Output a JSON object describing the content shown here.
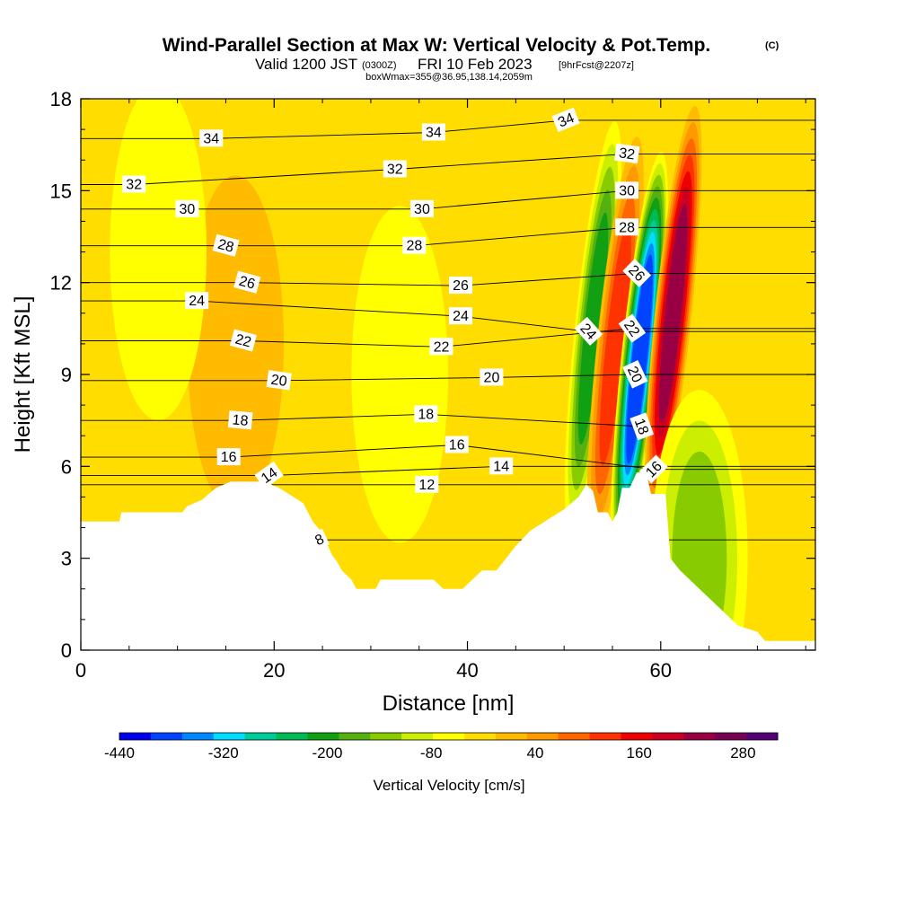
{
  "chart_data": {
    "type": "contour",
    "title": {
      "main": "Wind-Parallel Section at Max W: Vertical Velocity & Pot.Temp.",
      "copyright": "(C)",
      "valid_prefix": "Valid 1200 JST",
      "valid_utc": "(0300Z)",
      "valid_date": "FRI 10 Feb 2023",
      "forecast": "[9hrFcst@2207z]",
      "box": "boxWmax=355@36.95,138.14,2059m"
    },
    "xlabel": "Distance [nm]",
    "ylabel": "Height [Kft MSL]",
    "xlim": [
      0,
      76
    ],
    "ylim": [
      0,
      18
    ],
    "x_ticks": [
      0,
      20,
      40,
      60
    ],
    "y_ticks": [
      0,
      3,
      6,
      9,
      12,
      15,
      18
    ],
    "colorbar": {
      "label": "Vertical Velocity [cm/s]",
      "min": -440,
      "max": 320,
      "step": 40,
      "tick_values": [
        -440,
        -320,
        -200,
        -80,
        40,
        160,
        280
      ],
      "colors": [
        "#0000ee",
        "#0044ff",
        "#0088ff",
        "#00ddff",
        "#00cc99",
        "#00bb55",
        "#11a011",
        "#55b011",
        "#88cc00",
        "#ccee00",
        "#ffff00",
        "#ffdd00",
        "#ffbb00",
        "#ff9900",
        "#ff6600",
        "#ff3300",
        "#ee0000",
        "#cc0022",
        "#990044",
        "#770055",
        "#550077"
      ]
    },
    "background_velocity": 20,
    "velocity_cells": [
      {
        "x": 53,
        "y": 10.5,
        "value": -200
      },
      {
        "x": 55.3,
        "y": 10,
        "value": 180
      },
      {
        "x": 57.8,
        "y": 9.5,
        "value": -380
      },
      {
        "x": 61.3,
        "y": 11,
        "value": 320
      },
      {
        "x": 64,
        "y": 3,
        "value": -110
      },
      {
        "x": 16,
        "y": 10,
        "value": 60
      },
      {
        "x": 33,
        "y": 9,
        "value": -50
      },
      {
        "x": 8,
        "y": 13,
        "value": -30
      },
      {
        "x": 24,
        "y": 8,
        "value": 50
      }
    ],
    "terrain": [
      [
        0,
        4.2
      ],
      [
        4,
        4.2
      ],
      [
        4.2,
        4.5
      ],
      [
        10.5,
        4.5
      ],
      [
        11,
        4.7
      ],
      [
        12.5,
        4.9
      ],
      [
        14,
        5.3
      ],
      [
        15.5,
        5.5
      ],
      [
        19,
        5.5
      ],
      [
        20.5,
        5.3
      ],
      [
        22,
        5.0
      ],
      [
        23,
        4.8
      ],
      [
        23.5,
        4.5
      ],
      [
        24,
        4.2
      ],
      [
        24.8,
        3.9
      ],
      [
        25.3,
        3.6
      ],
      [
        26,
        3.1
      ],
      [
        26.5,
        2.9
      ],
      [
        27,
        2.6
      ],
      [
        28,
        2.3
      ],
      [
        28.5,
        2.0
      ],
      [
        30.5,
        2.0
      ],
      [
        31,
        2.3
      ],
      [
        34,
        2.3
      ],
      [
        35,
        2.3
      ],
      [
        36.5,
        2.3
      ],
      [
        37.5,
        2.0
      ],
      [
        39.5,
        2.0
      ],
      [
        40.5,
        2.3
      ],
      [
        41.5,
        2.6
      ],
      [
        43,
        2.6
      ],
      [
        44,
        3.0
      ],
      [
        45,
        3.4
      ],
      [
        46.5,
        3.9
      ],
      [
        48,
        4.2
      ],
      [
        50,
        4.6
      ],
      [
        51.5,
        5.0
      ],
      [
        52.3,
        5.4
      ],
      [
        53,
        5.2
      ],
      [
        53.5,
        4.5
      ],
      [
        54.5,
        4.5
      ],
      [
        55,
        4.2
      ],
      [
        55.5,
        4.5
      ],
      [
        56,
        5.3
      ],
      [
        56.8,
        5.3
      ],
      [
        57.5,
        5.8
      ],
      [
        58.5,
        5.8
      ],
      [
        59,
        5.1
      ],
      [
        60.5,
        5.1
      ],
      [
        61,
        3.0
      ],
      [
        62,
        2.6
      ],
      [
        63,
        2.3
      ],
      [
        64,
        2.0
      ],
      [
        65,
        1.7
      ],
      [
        66,
        1.4
      ],
      [
        67,
        1.1
      ],
      [
        68,
        0.8
      ],
      [
        70,
        0.6
      ],
      [
        70.8,
        0.3
      ],
      [
        76,
        0.3
      ]
    ],
    "theta_labels": [
      {
        "text": "34",
        "x": 13.5,
        "y": 16.7,
        "rot": 0
      },
      {
        "text": "34",
        "x": 36.5,
        "y": 16.9,
        "rot": 0
      },
      {
        "text": "34",
        "x": 50.2,
        "y": 17.3,
        "rot": -22
      },
      {
        "text": "32",
        "x": 5.5,
        "y": 15.2,
        "rot": 0
      },
      {
        "text": "32",
        "x": 32.5,
        "y": 15.7,
        "rot": 0
      },
      {
        "text": "32",
        "x": 56.5,
        "y": 16.2,
        "rot": 8
      },
      {
        "text": "30",
        "x": 11,
        "y": 14.4,
        "rot": 0
      },
      {
        "text": "30",
        "x": 35.3,
        "y": 14.4,
        "rot": 0
      },
      {
        "text": "30",
        "x": 56.5,
        "y": 15.0,
        "rot": 0
      },
      {
        "text": "28",
        "x": 15,
        "y": 13.2,
        "rot": 15
      },
      {
        "text": "28",
        "x": 34.5,
        "y": 13.2,
        "rot": 0
      },
      {
        "text": "28",
        "x": 56.5,
        "y": 13.8,
        "rot": 0
      },
      {
        "text": "26",
        "x": 17.2,
        "y": 12.0,
        "rot": 15
      },
      {
        "text": "26",
        "x": 39.3,
        "y": 11.9,
        "rot": 0
      },
      {
        "text": "26",
        "x": 57.5,
        "y": 12.3,
        "rot": 45
      },
      {
        "text": "24",
        "x": 12,
        "y": 11.4,
        "rot": 0
      },
      {
        "text": "24",
        "x": 39.3,
        "y": 10.9,
        "rot": 0
      },
      {
        "text": "24",
        "x": 52.5,
        "y": 10.4,
        "rot": 48
      },
      {
        "text": "22",
        "x": 16.8,
        "y": 10.1,
        "rot": 15
      },
      {
        "text": "22",
        "x": 37.3,
        "y": 9.9,
        "rot": 0
      },
      {
        "text": "22",
        "x": 57,
        "y": 10.5,
        "rot": 55
      },
      {
        "text": "20",
        "x": 20.5,
        "y": 8.8,
        "rot": 8
      },
      {
        "text": "20",
        "x": 42.5,
        "y": 8.9,
        "rot": 0
      },
      {
        "text": "20",
        "x": 57.3,
        "y": 9.0,
        "rot": 65
      },
      {
        "text": "18",
        "x": 16.5,
        "y": 7.5,
        "rot": 5
      },
      {
        "text": "18",
        "x": 35.7,
        "y": 7.7,
        "rot": 0
      },
      {
        "text": "18",
        "x": 58,
        "y": 7.3,
        "rot": 70
      },
      {
        "text": "16",
        "x": 15.3,
        "y": 6.3,
        "rot": 0
      },
      {
        "text": "16",
        "x": 38.9,
        "y": 6.7,
        "rot": 0
      },
      {
        "text": "16",
        "x": 59.3,
        "y": 5.9,
        "rot": -45
      },
      {
        "text": "14",
        "x": 19.5,
        "y": 5.7,
        "rot": -35
      },
      {
        "text": "14",
        "x": 43.5,
        "y": 6.0,
        "rot": 0
      },
      {
        "text": "12",
        "x": 35.8,
        "y": 5.4,
        "rot": 0
      },
      {
        "text": "8",
        "x": 24.7,
        "y": 3.6,
        "rot": -25
      }
    ]
  }
}
